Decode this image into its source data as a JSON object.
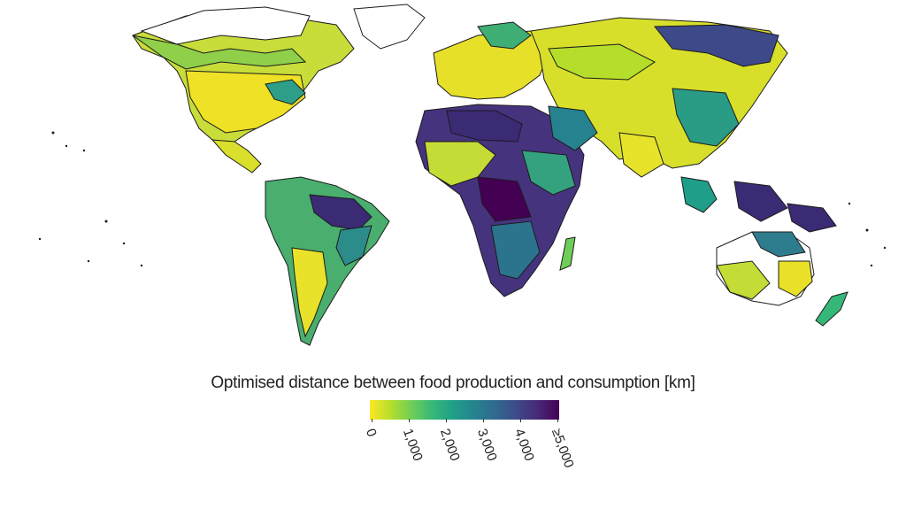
{
  "map": {
    "description_colors": {
      "land_low": "#f2e31c",
      "land_mid": "#29a08a",
      "land_high": "#3b2a74",
      "nodata": "#ffffff",
      "border": "#1b1b1b"
    }
  },
  "legend": {
    "title": "Optimised distance between food production and consumption [km]",
    "ticks": [
      "0",
      "1,000",
      "2,000",
      "3,000",
      "4,000",
      "≥5,000"
    ],
    "tick_values": [
      0,
      1000,
      2000,
      3000,
      4000,
      5000
    ],
    "colormap": "viridis (reversed)",
    "stops": [
      "#fde725",
      "#b5de2b",
      "#6ece58",
      "#35b779",
      "#1f9e89",
      "#26828e",
      "#31688e",
      "#3e4989",
      "#482878",
      "#440154"
    ]
  }
}
